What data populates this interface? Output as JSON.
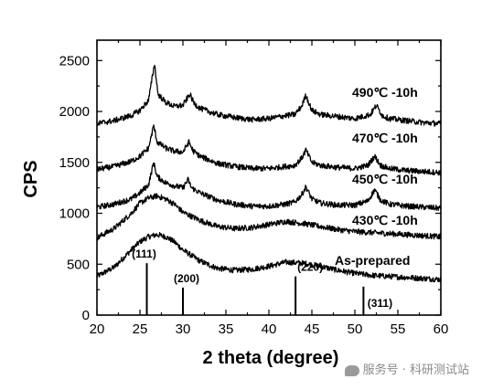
{
  "chart_data": {
    "type": "line",
    "xlabel": "2 theta (degree)",
    "ylabel": "CPS",
    "xlim": [
      20,
      60
    ],
    "ylim": [
      0,
      2700
    ],
    "x_ticks": [
      20,
      25,
      30,
      35,
      40,
      45,
      50,
      55,
      60
    ],
    "y_ticks": [
      0,
      500,
      1000,
      1500,
      2000,
      2500
    ],
    "grid": false,
    "legend": "none",
    "series": [
      {
        "name": "As-prepared",
        "x": [
          20,
          22,
          24,
          25,
          26,
          27,
          28,
          29,
          30,
          32,
          34,
          36,
          38,
          40,
          42,
          44,
          46,
          48,
          50,
          52,
          54,
          56,
          58,
          60
        ],
        "y": [
          380,
          470,
          640,
          720,
          770,
          790,
          770,
          720,
          640,
          530,
          460,
          440,
          450,
          480,
          520,
          510,
          480,
          440,
          410,
          390,
          380,
          370,
          360,
          350
        ]
      },
      {
        "name": "430℃ -10h",
        "x": [
          20,
          22,
          24,
          25,
          26,
          27,
          28,
          29,
          30,
          32,
          34,
          36,
          38,
          40,
          42,
          44,
          46,
          48,
          50,
          52,
          54,
          56,
          58,
          60
        ],
        "y": [
          760,
          850,
          1000,
          1100,
          1150,
          1170,
          1140,
          1090,
          1010,
          930,
          870,
          850,
          860,
          890,
          920,
          900,
          870,
          840,
          820,
          810,
          800,
          790,
          780,
          770
        ]
      },
      {
        "name": "450℃ -10h",
        "x": [
          20,
          22,
          24,
          25,
          26,
          26.6,
          27,
          28,
          29,
          30,
          30.6,
          31,
          32,
          34,
          36,
          38,
          40,
          42,
          43,
          43.8,
          44.3,
          45,
          46,
          48,
          50,
          51.5,
          52.3,
          53,
          54,
          56,
          58,
          60
        ],
        "y": [
          1060,
          1090,
          1140,
          1200,
          1280,
          1500,
          1360,
          1300,
          1270,
          1250,
          1330,
          1250,
          1200,
          1130,
          1090,
          1070,
          1070,
          1090,
          1110,
          1180,
          1260,
          1140,
          1100,
          1080,
          1080,
          1120,
          1230,
          1130,
          1090,
          1070,
          1060,
          1050
        ]
      },
      {
        "name": "470℃ -10h",
        "x": [
          20,
          22,
          24,
          25,
          26,
          26.6,
          27,
          28,
          29,
          30,
          30.7,
          31.2,
          32,
          34,
          36,
          38,
          40,
          42,
          43,
          43.8,
          44.3,
          45,
          46,
          48,
          50,
          51.5,
          52.3,
          53,
          54,
          56,
          58,
          60
        ],
        "y": [
          1430,
          1460,
          1510,
          1560,
          1640,
          1860,
          1700,
          1640,
          1610,
          1600,
          1700,
          1610,
          1560,
          1490,
          1460,
          1440,
          1440,
          1460,
          1470,
          1540,
          1620,
          1500,
          1470,
          1450,
          1440,
          1470,
          1560,
          1470,
          1440,
          1420,
          1410,
          1400
        ]
      },
      {
        "name": "490℃ -10h",
        "x": [
          20,
          22,
          24,
          25,
          26,
          26.7,
          27.1,
          28,
          29,
          30,
          30.8,
          31.3,
          32,
          34,
          36,
          38,
          40,
          42,
          43,
          43.8,
          44.3,
          45,
          46,
          48,
          50,
          51.8,
          52.5,
          53.2,
          54,
          56,
          58,
          60
        ],
        "y": [
          1880,
          1910,
          1960,
          2010,
          2110,
          2470,
          2170,
          2090,
          2050,
          2060,
          2170,
          2080,
          2030,
          1970,
          1940,
          1920,
          1930,
          1960,
          1970,
          2050,
          2160,
          2010,
          1970,
          1950,
          1930,
          1970,
          2060,
          1960,
          1930,
          1910,
          1890,
          1880
        ]
      }
    ],
    "reference_lines": [
      {
        "x": 25.8,
        "height": 510,
        "label": "(111)"
      },
      {
        "x": 30.0,
        "height": 270,
        "label": "(200)"
      },
      {
        "x": 43.1,
        "height": 380,
        "label": "(220)"
      },
      {
        "x": 51.0,
        "height": 280,
        "label": "(311)"
      }
    ],
    "colors": {
      "line": "#000000",
      "background": "#ffffff"
    }
  },
  "watermark": {
    "text": "服务号 · 科研测试站"
  }
}
